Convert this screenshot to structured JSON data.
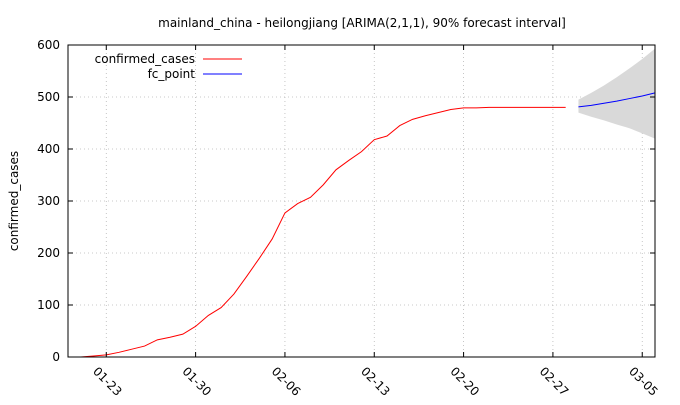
{
  "chart_data": {
    "type": "line",
    "title": "mainland_china - heilongjiang [ARIMA(2,1,1), 90% forecast interval]",
    "xlabel": "",
    "ylabel": "confirmed_cases",
    "x_type": "date",
    "xlim": [
      "2020-01-20",
      "2020-03-06"
    ],
    "ylim": [
      0,
      600
    ],
    "y_ticks": [
      0,
      100,
      200,
      300,
      400,
      500,
      600
    ],
    "x_ticks": [
      {
        "date": "2020-01-23",
        "label": "01-23"
      },
      {
        "date": "2020-01-30",
        "label": "01-30"
      },
      {
        "date": "2020-02-06",
        "label": "02-06"
      },
      {
        "date": "2020-02-13",
        "label": "02-13"
      },
      {
        "date": "2020-02-20",
        "label": "02-20"
      },
      {
        "date": "2020-02-27",
        "label": "02-27"
      },
      {
        "date": "2020-03-05",
        "label": "03-05"
      }
    ],
    "grid": true,
    "legend_position": "top-left",
    "series": [
      {
        "name": "confirmed_cases",
        "color": "#ff0000",
        "x": [
          "2020-01-21",
          "2020-01-22",
          "2020-01-23",
          "2020-01-24",
          "2020-01-25",
          "2020-01-26",
          "2020-01-27",
          "2020-01-28",
          "2020-01-29",
          "2020-01-30",
          "2020-01-31",
          "2020-02-01",
          "2020-02-02",
          "2020-02-03",
          "2020-02-04",
          "2020-02-05",
          "2020-02-06",
          "2020-02-07",
          "2020-02-08",
          "2020-02-09",
          "2020-02-10",
          "2020-02-11",
          "2020-02-12",
          "2020-02-13",
          "2020-02-14",
          "2020-02-15",
          "2020-02-16",
          "2020-02-17",
          "2020-02-18",
          "2020-02-19",
          "2020-02-20",
          "2020-02-21",
          "2020-02-22",
          "2020-02-23",
          "2020-02-24",
          "2020-02-25",
          "2020-02-26",
          "2020-02-27",
          "2020-02-28"
        ],
        "y": [
          0,
          2,
          4,
          9,
          15,
          21,
          33,
          38,
          44,
          59,
          80,
          95,
          121,
          155,
          190,
          227,
          277,
          295,
          307,
          331,
          360,
          378,
          395,
          418,
          425,
          445,
          457,
          464,
          470,
          476,
          479,
          479,
          480,
          480,
          480,
          480,
          480,
          480,
          480
        ]
      },
      {
        "name": "fc_point",
        "color": "#0000ff",
        "x": [
          "2020-02-29",
          "2020-03-01",
          "2020-03-02",
          "2020-03-03",
          "2020-03-04",
          "2020-03-05",
          "2020-03-06"
        ],
        "y": [
          481,
          484,
          488,
          492,
          497,
          502,
          508
        ]
      }
    ],
    "forecast_interval": {
      "level": "90%",
      "color": "#d9d9d9",
      "x": [
        "2020-02-29",
        "2020-03-01",
        "2020-03-02",
        "2020-03-03",
        "2020-03-04",
        "2020-03-05",
        "2020-03-06"
      ],
      "lower": [
        470,
        462,
        455,
        447,
        440,
        430,
        420
      ],
      "upper": [
        495,
        508,
        522,
        538,
        555,
        573,
        593
      ]
    }
  }
}
